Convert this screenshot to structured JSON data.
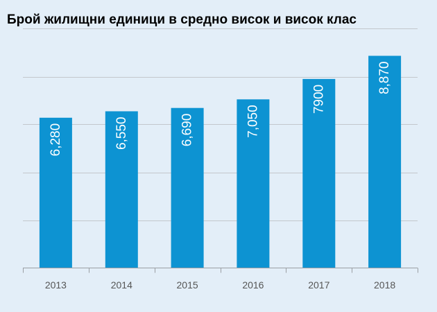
{
  "colors": {
    "background": "#e3eef8",
    "bar": "#0d93d2",
    "grid": "#c3c7cc",
    "axis": "#9a9ea3",
    "tick_text": "#555555",
    "bar_text": "#ffffff",
    "title_text": "#000000"
  },
  "chart_data": {
    "type": "bar",
    "title": "Брой жилищни единици в средно висок и висок клас",
    "xlabel": "",
    "ylabel": "",
    "categories": [
      "2013",
      "2014",
      "2015",
      "2016",
      "2017",
      "2018"
    ],
    "values": [
      6280,
      6550,
      6690,
      7050,
      7900,
      8870
    ],
    "value_labels": [
      "6,280",
      "6,550",
      "6,690",
      "7,050",
      "7900",
      "8,870"
    ],
    "ylim": [
      0,
      10000
    ],
    "grid": true,
    "legend": "none",
    "value_label_orientation": "vertical"
  }
}
